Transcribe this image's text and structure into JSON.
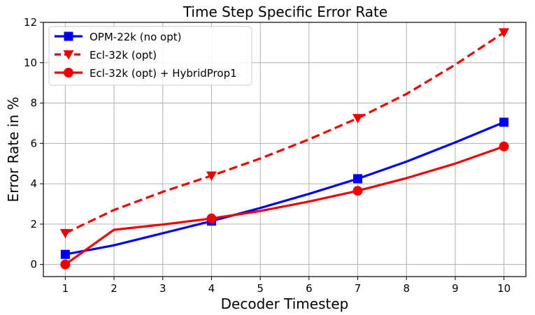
{
  "chart_data": {
    "type": "line",
    "title": "Time Step Specific Error Rate",
    "xlabel": "Decoder Timestep",
    "ylabel": "Error Rate in %",
    "xlim": [
      0.55,
      10.45
    ],
    "ylim": [
      -0.6,
      12.0
    ],
    "xticks": [
      1,
      2,
      3,
      4,
      5,
      6,
      7,
      8,
      9,
      10
    ],
    "yticks": [
      0,
      2,
      4,
      6,
      8,
      10,
      12
    ],
    "grid": true,
    "legend_position": "top-left",
    "series": [
      {
        "name": "OPM-22k (no opt)",
        "color": "#0000ee",
        "line_style": "solid",
        "marker": "square",
        "x": [
          1,
          2,
          3,
          4,
          5,
          6,
          7,
          8,
          9,
          10
        ],
        "y": [
          0.5,
          0.95,
          1.55,
          2.15,
          2.8,
          3.5,
          4.25,
          5.1,
          6.05,
          7.05
        ],
        "marker_x": [
          1,
          4,
          7,
          10
        ]
      },
      {
        "name": "Ecl-32k (opt)",
        "color": "#ee0000",
        "line_style": "dashed",
        "marker": "triangle-down",
        "x": [
          1,
          2,
          3,
          4,
          5,
          6,
          7,
          8,
          9,
          10
        ],
        "y": [
          1.55,
          2.7,
          3.6,
          4.4,
          5.25,
          6.2,
          7.25,
          8.45,
          9.9,
          11.5
        ],
        "marker_x": [
          1,
          4,
          7,
          10
        ]
      },
      {
        "name": "Ecl-32k (opt) + HybridProp1",
        "color": "#ee0000",
        "line_style": "solid",
        "marker": "circle",
        "x": [
          1,
          2,
          3,
          4,
          5,
          6,
          7,
          8,
          9,
          10
        ],
        "y": [
          0.0,
          1.72,
          1.98,
          2.28,
          2.65,
          3.12,
          3.65,
          4.28,
          5.0,
          5.85
        ],
        "marker_x": [
          1,
          4,
          7,
          10
        ]
      }
    ]
  }
}
